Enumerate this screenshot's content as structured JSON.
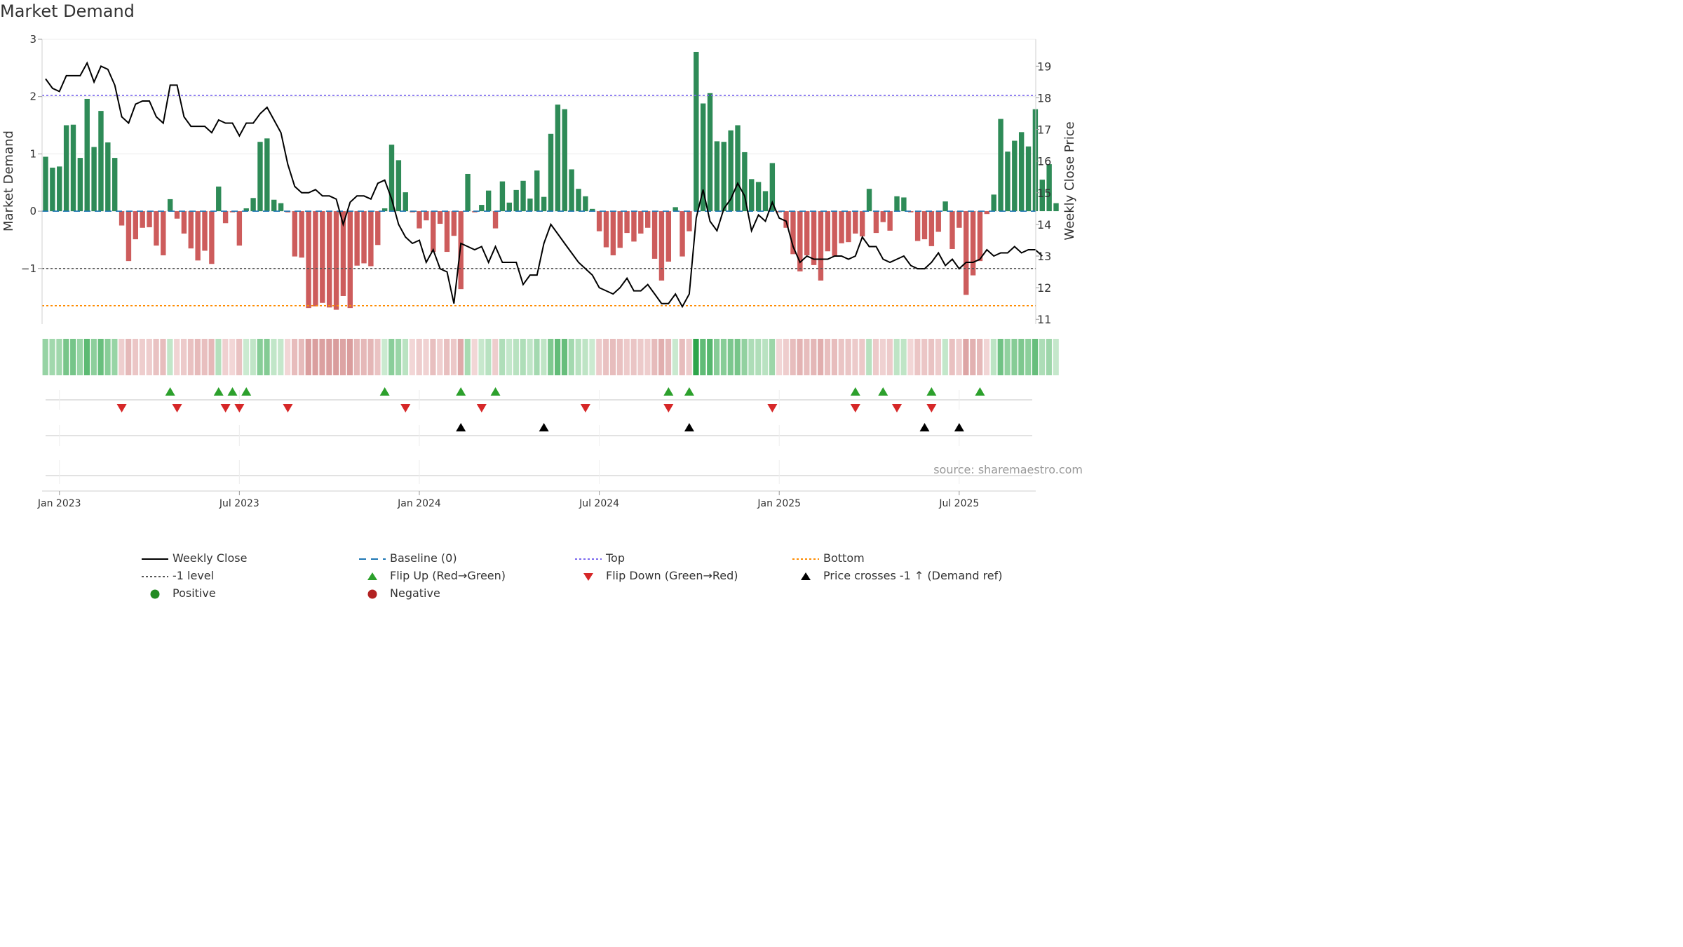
{
  "title": "Market Demand",
  "source": "source: sharemaestro.com",
  "colors": {
    "pos_bar": "#2e8b57",
    "neg_bar": "#cd5c5c",
    "close": "#000000",
    "baseline": "#1f77b4",
    "top": "#7b68ee",
    "bottom": "#ff8c00",
    "level": "#555555",
    "flip_up": "#2ca02c",
    "flip_down": "#d62728",
    "cross": "#000000"
  },
  "chart_data": {
    "type": "bar+line",
    "title": "Market Demand",
    "ylabel_left": "Market Demand",
    "ylabel_right": "Weekly Close Price",
    "y_left_ticks": [
      "3",
      "2",
      "1",
      "0",
      "−1"
    ],
    "y_left_tick_values": [
      3,
      2,
      1,
      0,
      -1
    ],
    "y_left_range": [
      -1.97,
      3.0
    ],
    "y_right_ticks": [
      "19",
      "18",
      "17",
      "16",
      "15",
      "14",
      "13",
      "12",
      "11"
    ],
    "y_right_tick_values": [
      19,
      18,
      17,
      16,
      15,
      14,
      13,
      12,
      11
    ],
    "y_right_range": [
      10.85,
      19.85
    ],
    "x_ticks": [
      "Jan 2023",
      "Jul 2023",
      "Jan 2024",
      "Jul 2024",
      "Jan 2025",
      "Jul 2025"
    ],
    "x_tick_week_index": [
      2,
      28,
      54,
      80,
      106,
      132
    ],
    "reference_lines": {
      "baseline": 0,
      "top": 2.02,
      "level": -1,
      "bottom": -1.65
    },
    "demand": [
      0.95,
      0.76,
      0.78,
      1.5,
      1.51,
      0.93,
      1.96,
      1.12,
      1.75,
      1.2,
      0.93,
      -0.25,
      -0.87,
      -0.49,
      -0.29,
      -0.28,
      -0.6,
      -0.77,
      0.21,
      -0.13,
      -0.39,
      -0.65,
      -0.86,
      -0.69,
      -0.92,
      0.43,
      -0.21,
      -0.02,
      -0.6,
      0.05,
      0.23,
      1.21,
      1.27,
      0.2,
      0.14,
      -0.02,
      -0.79,
      -0.81,
      -1.69,
      -1.66,
      -1.6,
      -1.68,
      -1.72,
      -1.48,
      -1.69,
      -0.95,
      -0.91,
      -0.96,
      -0.59,
      0.05,
      1.16,
      0.89,
      0.33,
      -0.02,
      -0.3,
      -0.16,
      -0.71,
      -0.22,
      -0.71,
      -0.43,
      -1.36,
      0.65,
      -0.02,
      0.11,
      0.36,
      -0.3,
      0.52,
      0.15,
      0.37,
      0.53,
      0.22,
      0.71,
      0.25,
      1.35,
      1.86,
      1.78,
      0.73,
      0.39,
      0.26,
      0.04,
      -0.35,
      -0.63,
      -0.77,
      -0.64,
      -0.38,
      -0.53,
      -0.39,
      -0.29,
      -0.83,
      -1.21,
      -0.88,
      0.07,
      -0.79,
      -0.35,
      2.78,
      1.88,
      2.06,
      1.22,
      1.21,
      1.41,
      1.5,
      1.03,
      0.56,
      0.51,
      0.35,
      0.84,
      -0.02,
      -0.29,
      -0.75,
      -1.05,
      -0.77,
      -0.94,
      -1.21,
      -0.7,
      -0.78,
      -0.56,
      -0.54,
      -0.39,
      -0.44,
      0.39,
      -0.38,
      -0.19,
      -0.34,
      0.26,
      0.24,
      -0.02,
      -0.52,
      -0.49,
      -0.61,
      -0.36,
      0.17,
      -0.66,
      -0.29,
      -1.46,
      -1.12,
      -0.87,
      -0.05,
      0.29,
      1.61,
      1.04,
      1.23,
      1.38,
      1.13,
      1.78,
      0.55,
      0.82,
      0.14
    ],
    "close": [
      18.6,
      18.3,
      18.2,
      18.7,
      18.7,
      18.7,
      19.1,
      18.5,
      19.0,
      18.9,
      18.4,
      17.4,
      17.2,
      17.8,
      17.9,
      17.9,
      17.4,
      17.2,
      18.4,
      18.4,
      17.4,
      17.1,
      17.1,
      17.1,
      16.9,
      17.3,
      17.2,
      17.2,
      16.8,
      17.2,
      17.2,
      17.5,
      17.7,
      17.3,
      16.9,
      15.9,
      15.2,
      15.0,
      15.0,
      15.1,
      14.9,
      14.9,
      14.8,
      14.0,
      14.7,
      14.9,
      14.9,
      14.8,
      15.3,
      15.4,
      14.8,
      14.0,
      13.6,
      13.4,
      13.5,
      12.8,
      13.2,
      12.6,
      12.5,
      11.5,
      13.4,
      13.3,
      13.2,
      13.3,
      12.8,
      13.3,
      12.8,
      12.8,
      12.8,
      12.1,
      12.4,
      12.4,
      13.4,
      14.0,
      13.7,
      13.4,
      13.1,
      12.8,
      12.6,
      12.4,
      12.0,
      11.9,
      11.8,
      12.0,
      12.3,
      11.9,
      11.9,
      12.1,
      11.8,
      11.5,
      11.5,
      11.8,
      11.4,
      11.8,
      14.2,
      15.1,
      14.1,
      13.8,
      14.5,
      14.8,
      15.3,
      14.9,
      13.8,
      14.3,
      14.1,
      14.7,
      14.2,
      14.1,
      13.3,
      12.8,
      13.0,
      12.9,
      12.9,
      12.9,
      13.0,
      13.0,
      12.9,
      13.0,
      13.6,
      13.3,
      13.3,
      12.9,
      12.8,
      12.9,
      13.0,
      12.7,
      12.6,
      12.6,
      12.8,
      13.1,
      12.7,
      12.9,
      12.6,
      12.8,
      12.8,
      12.9,
      13.2,
      13.0,
      13.1,
      13.1,
      13.3,
      13.1,
      13.2,
      13.2,
      13.0
    ],
    "heat_strip": "demand value per week, colour-coded green (positive) / red (negative), saturation by magnitude",
    "flip_up_weeks": [
      18,
      25,
      27,
      29,
      49,
      60,
      65,
      90,
      93,
      117,
      121,
      128,
      135
    ],
    "flip_down_weeks": [
      11,
      19,
      26,
      28,
      35,
      52,
      63,
      78,
      90,
      105,
      117,
      123,
      128
    ],
    "cross_weeks": [
      60,
      72,
      93,
      127,
      132
    ]
  },
  "legend": [
    {
      "label": "Weekly Close",
      "symbol": "line-black"
    },
    {
      "label": "Baseline (0)",
      "symbol": "dash-blue"
    },
    {
      "label": "Top",
      "symbol": "dot-purple"
    },
    {
      "label": "Bottom",
      "symbol": "dot-orange"
    },
    {
      "label": "-1 level",
      "symbol": "dot-gray"
    },
    {
      "label": "Flip Up (Red→Green)",
      "symbol": "tri-up-green"
    },
    {
      "label": "Flip Down (Green→Red)",
      "symbol": "tri-down-red"
    },
    {
      "label": "Price crosses -1 ↑ (Demand ref)",
      "symbol": "tri-up-black"
    },
    {
      "label": "Positive",
      "symbol": "circle-green"
    },
    {
      "label": "Negative",
      "symbol": "circle-red"
    }
  ]
}
